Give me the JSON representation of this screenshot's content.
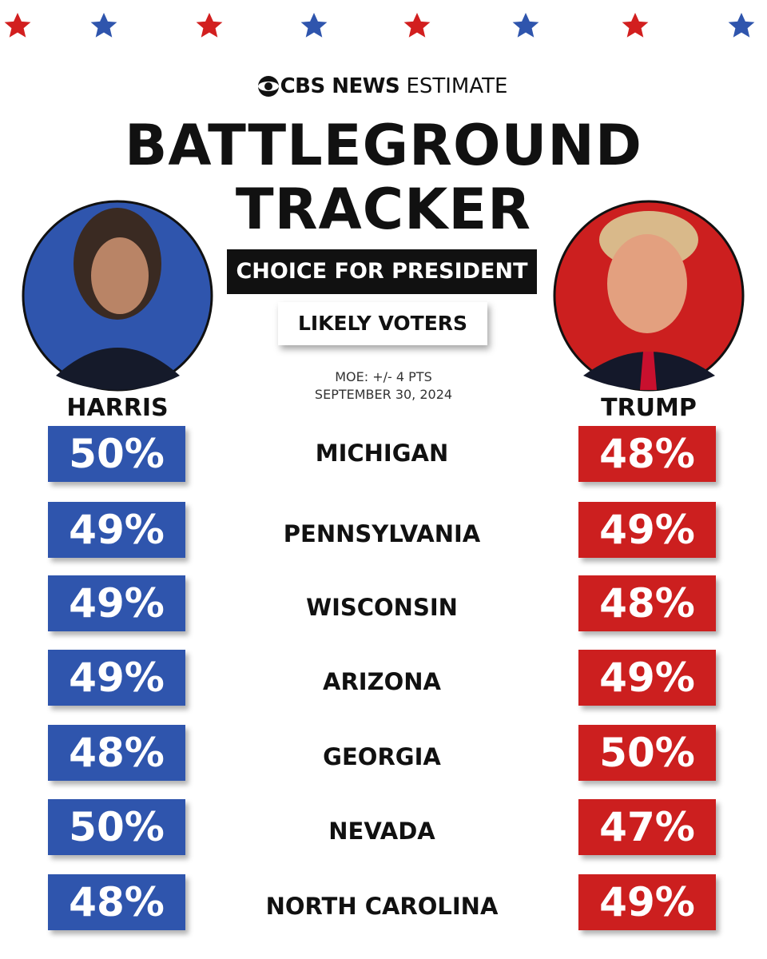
{
  "header": {
    "brand": "CBS NEWS",
    "label": "ESTIMATE"
  },
  "title": [
    "BATTLEGROUND",
    "TRACKER"
  ],
  "subtitle": "CHOICE FOR PRESIDENT",
  "population": "LIKELY VOTERS",
  "moe": "MOE: +/- 4 PTS",
  "date": "SEPTEMBER 30, 2024",
  "candidates": [
    "HARRIS",
    "TRUMP"
  ],
  "rows": [
    {
      "state": "MICHIGAN",
      "harris": "50%",
      "trump": "48%"
    },
    {
      "state": "PENNSYLVANIA",
      "harris": "49%",
      "trump": "49%"
    },
    {
      "state": "WISCONSIN",
      "harris": "49%",
      "trump": "48%"
    },
    {
      "state": "ARIZONA",
      "harris": "49%",
      "trump": "49%"
    },
    {
      "state": "GEORGIA",
      "harris": "48%",
      "trump": "50%"
    },
    {
      "state": "NEVADA",
      "harris": "50%",
      "trump": "47%"
    },
    {
      "state": "NORTH CAROLINA",
      "harris": "48%",
      "trump": "49%"
    }
  ]
}
